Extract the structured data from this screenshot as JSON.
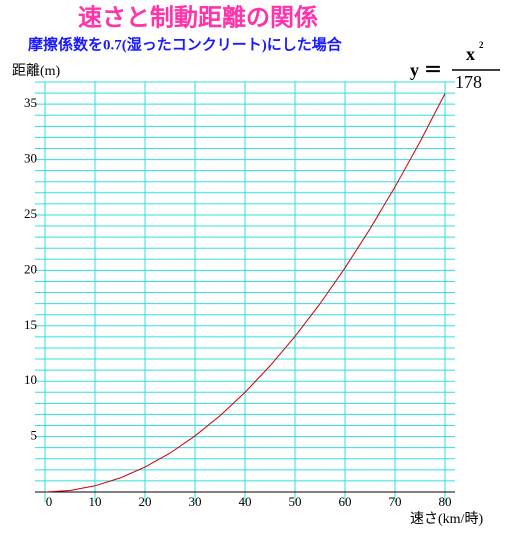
{
  "chart_data": {
    "type": "line",
    "title": "速さと制動距離の関係",
    "subtitle": "摩擦係数を0.7(湿ったコンクリート)にした場合",
    "formula": {
      "lhs": "y",
      "eq": "＝",
      "numerator": "x",
      "exponent": "2",
      "denominator": "178"
    },
    "y_label": "距離(m)",
    "x_label": "速さ(km/時)",
    "x": [
      0,
      5,
      10,
      15,
      20,
      25,
      30,
      35,
      40,
      45,
      50,
      55,
      60,
      65,
      70,
      75,
      80
    ],
    "series": [
      {
        "color": "#cc0000",
        "values": [
          0,
          0.14,
          0.56,
          1.26,
          2.25,
          3.51,
          5.06,
          6.88,
          8.99,
          11.38,
          14.04,
          16.99,
          20.22,
          23.74,
          27.53,
          31.6,
          35.96
        ]
      }
    ],
    "xlim": [
      0,
      80
    ],
    "ylim": [
      0,
      37
    ],
    "xticks": [
      0,
      10,
      20,
      30,
      40,
      50,
      60,
      70,
      80
    ],
    "yticks": [
      5,
      10,
      15,
      20,
      25,
      30,
      35
    ],
    "yminorticks": [
      1,
      2,
      3,
      4,
      5,
      6,
      7,
      8,
      9,
      10,
      11,
      12,
      13,
      14,
      15,
      16,
      17,
      18,
      19,
      20,
      21,
      22,
      23,
      24,
      25,
      26,
      27,
      28,
      29,
      30,
      31,
      32,
      33,
      34,
      35,
      36,
      37
    ],
    "grid": true,
    "grid_color": "#33dddd"
  }
}
